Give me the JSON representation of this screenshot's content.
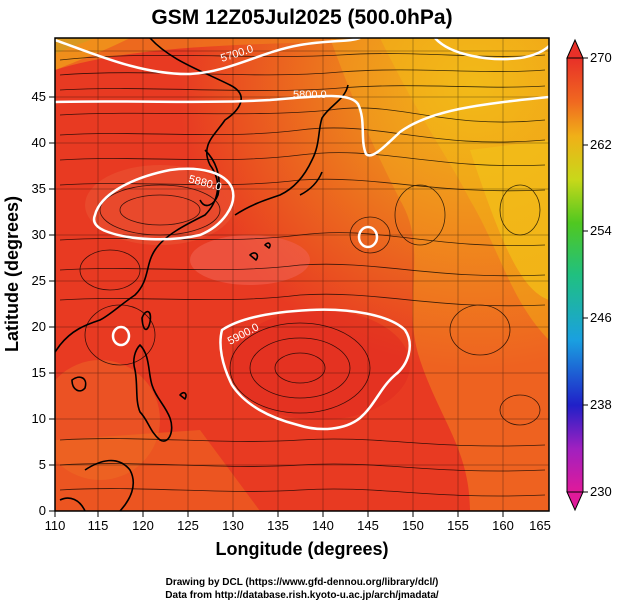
{
  "title": "GSM 12Z05Jul2025 (500.0hPa)",
  "xlabel": "Longitude (degrees)",
  "ylabel": "Latitude (degrees)",
  "x_ticks": [
    "110",
    "115",
    "120",
    "125",
    "130",
    "135",
    "140",
    "145",
    "150",
    "155",
    "160",
    "165"
  ],
  "y_ticks": [
    "0",
    "5",
    "10",
    "15",
    "20",
    "25",
    "30",
    "35",
    "40",
    "45"
  ],
  "colorbar": {
    "min": 230,
    "max": 270,
    "tick_labels": [
      "230",
      "238",
      "246",
      "254",
      "262",
      "270"
    ]
  },
  "contour_labels": [
    "5700.0",
    "5800.0",
    "5880.0",
    "5900.0"
  ],
  "credits": [
    "Drawing by DCL (https://www.gfd-dennou.org/library/dcl/)",
    "Data from http://database.rish.kyoto-u.ac.jp/arch/jmadata/"
  ],
  "colors": {
    "field_main": "#e83a22",
    "field_warm": "#ea5030",
    "field_orange": "#ef7d1c",
    "field_yellow": "#f2b618",
    "field_green": "#a8d62a",
    "contour": "#ffffff",
    "coast": "#000000"
  }
}
